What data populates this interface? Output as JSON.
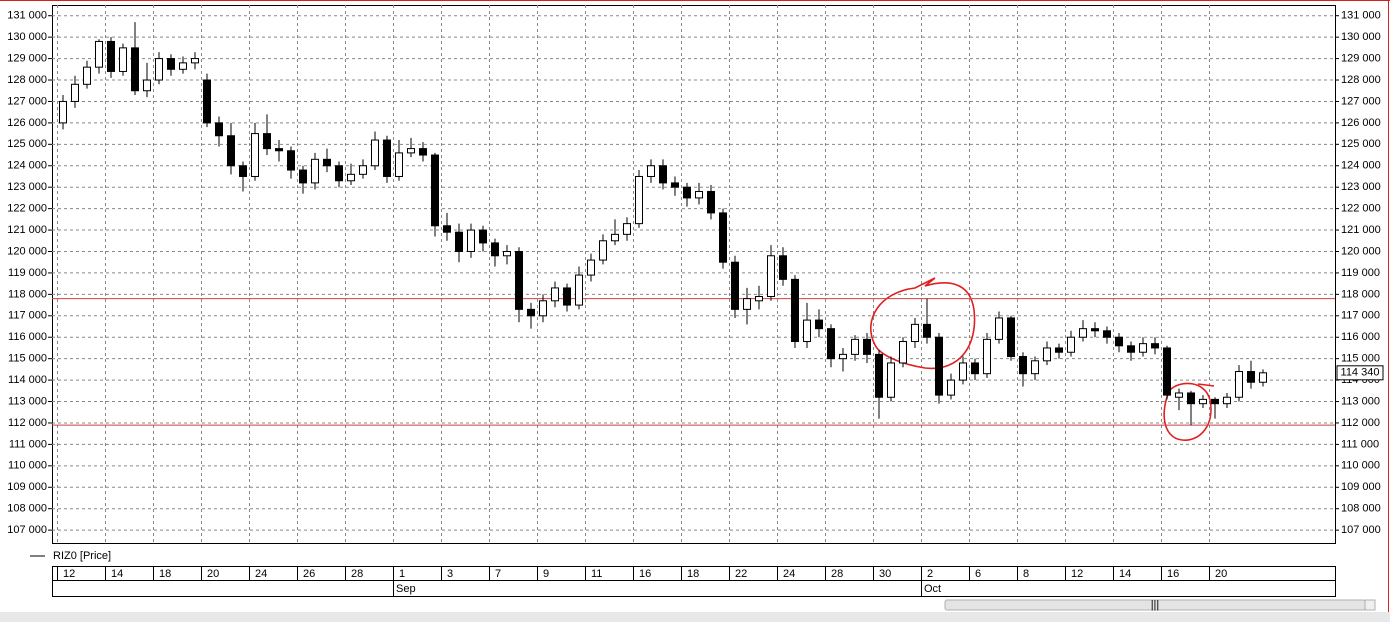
{
  "chart_data": {
    "type": "candlestick",
    "ylim": [
      106400,
      131500
    ],
    "yticks": [
      {
        "value": 107000,
        "label": "107 000"
      },
      {
        "value": 108000,
        "label": "108 000"
      },
      {
        "value": 109000,
        "label": "109 000"
      },
      {
        "value": 110000,
        "label": "110 000"
      },
      {
        "value": 111000,
        "label": "111 000"
      },
      {
        "value": 112000,
        "label": "112 000"
      },
      {
        "value": 113000,
        "label": "113 000"
      },
      {
        "value": 114000,
        "label": "114 000"
      },
      {
        "value": 115000,
        "label": "115 000"
      },
      {
        "value": 116000,
        "label": "116 000"
      },
      {
        "value": 117000,
        "label": "117 000"
      },
      {
        "value": 118000,
        "label": "118 000"
      },
      {
        "value": 119000,
        "label": "119 000"
      },
      {
        "value": 120000,
        "label": "120 000"
      },
      {
        "value": 121000,
        "label": "121 000"
      },
      {
        "value": 122000,
        "label": "122 000"
      },
      {
        "value": 123000,
        "label": "123 000"
      },
      {
        "value": 124000,
        "label": "124 000"
      },
      {
        "value": 125000,
        "label": "125 000"
      },
      {
        "value": 126000,
        "label": "126 000"
      },
      {
        "value": 127000,
        "label": "127 000"
      },
      {
        "value": 128000,
        "label": "128 000"
      },
      {
        "value": 129000,
        "label": "129 000"
      },
      {
        "value": 130000,
        "label": "130 000"
      },
      {
        "value": 131000,
        "label": "131 000"
      }
    ],
    "grid": true,
    "categories": [
      "12",
      null,
      null,
      null,
      "14",
      null,
      null,
      null,
      "18",
      null,
      null,
      null,
      "20",
      null,
      null,
      null,
      "24",
      null,
      null,
      null,
      "26",
      null,
      null,
      null,
      "28",
      null,
      null,
      null,
      "1",
      null,
      null,
      null,
      "3",
      null,
      null,
      null,
      "7",
      null,
      null,
      null,
      "9",
      null,
      null,
      null,
      "11",
      null,
      null,
      null,
      "16",
      null,
      null,
      null,
      "18",
      null,
      null,
      null,
      "22",
      null,
      null,
      null,
      "24",
      null,
      null,
      null,
      "28",
      null,
      null,
      null,
      "30",
      null,
      null,
      null,
      "2",
      null,
      null,
      null,
      "6",
      null,
      null,
      null,
      "8",
      null,
      null,
      null,
      "12",
      null,
      null,
      null,
      "14",
      null,
      null,
      null,
      "16",
      null,
      null,
      null,
      "20",
      null,
      null,
      null,
      null
    ],
    "months": [
      null,
      null,
      null,
      null,
      null,
      null,
      null,
      null,
      null,
      null,
      null,
      null,
      null,
      null,
      null,
      null,
      null,
      null,
      null,
      null,
      null,
      null,
      null,
      null,
      null,
      null,
      null,
      null,
      "Sep",
      null,
      null,
      null,
      null,
      null,
      null,
      null,
      null,
      null,
      null,
      null,
      null,
      null,
      null,
      null,
      null,
      null,
      null,
      null,
      null,
      null,
      null,
      null,
      null,
      null,
      null,
      null,
      null,
      null,
      null,
      null,
      null,
      null,
      null,
      null,
      null,
      null,
      null,
      null,
      null,
      null,
      null,
      null,
      "Oct",
      null,
      null,
      null,
      null,
      null,
      null,
      null,
      null,
      null,
      null,
      null,
      null,
      null,
      null,
      null,
      null,
      null,
      null,
      null,
      null,
      null,
      null,
      null,
      null,
      null,
      null,
      null,
      null
    ],
    "series": [
      {
        "name": "RIZ0 [Price]",
        "up_color": "#ffffff",
        "down_color": "#000000",
        "open": [
          126000,
          127000,
          127800,
          128600,
          129800,
          128400,
          129500,
          127500,
          128000,
          129000,
          128500,
          128800,
          128000,
          126000,
          125400,
          124000,
          123500,
          125500,
          124800,
          124700,
          123800,
          123200,
          124300,
          124000,
          123300,
          123600,
          124000,
          125200,
          123500,
          124600,
          124800,
          124500,
          121200,
          120900,
          120000,
          121000,
          120400,
          119800,
          120000,
          117300,
          117000,
          117700,
          118300,
          117500,
          118900,
          119600,
          120500,
          120800,
          121300,
          123500,
          124000,
          123200,
          123000,
          122500,
          122800,
          121800,
          119500,
          117300,
          117700,
          117900,
          119800,
          118700,
          115800,
          116800,
          116400,
          115000,
          115200,
          115900,
          115200,
          113200,
          114800,
          115800,
          116600,
          116000,
          113300,
          114000,
          114800,
          114300,
          115900,
          116900,
          115100,
          114300,
          114900,
          115500,
          115300,
          116000,
          116400,
          116300,
          116000,
          115600,
          115300,
          115700,
          115500,
          113200,
          113400,
          112900,
          113100,
          112900,
          113200,
          114400,
          113900
        ],
        "high": [
          127300,
          128200,
          128900,
          129900,
          130000,
          129700,
          130700,
          128800,
          129300,
          129200,
          129100,
          129300,
          128300,
          126300,
          126000,
          124200,
          126000,
          126400,
          125200,
          124900,
          124000,
          124600,
          124800,
          124200,
          124100,
          124300,
          125600,
          125400,
          125200,
          125300,
          125100,
          124600,
          121800,
          121300,
          121300,
          121200,
          120600,
          120300,
          120200,
          117600,
          118000,
          118600,
          118500,
          119300,
          119900,
          120800,
          121500,
          121600,
          123800,
          124300,
          124300,
          123500,
          123200,
          123200,
          123100,
          122000,
          119800,
          118300,
          118400,
          120300,
          120200,
          118900,
          117600,
          117300,
          116600,
          115500,
          116100,
          116200,
          115400,
          115100,
          116000,
          116900,
          117800,
          116200,
          114300,
          115100,
          115000,
          116200,
          117200,
          117000,
          115300,
          115100,
          115800,
          115700,
          116300,
          116800,
          116700,
          116500,
          116200,
          115800,
          116000,
          116000,
          115600,
          113600,
          113500,
          113300,
          113200,
          113400,
          114700,
          114900,
          114500
        ],
        "low": [
          125700,
          126700,
          127600,
          128300,
          128100,
          128200,
          127300,
          127200,
          127800,
          128200,
          128300,
          128500,
          125800,
          124900,
          123600,
          122800,
          123300,
          124500,
          124200,
          123400,
          122700,
          122900,
          123700,
          123000,
          123100,
          123400,
          123800,
          123200,
          123300,
          124400,
          124200,
          120700,
          120500,
          119500,
          119700,
          120000,
          119300,
          119400,
          116700,
          116400,
          116700,
          117400,
          117200,
          117300,
          118600,
          119400,
          120300,
          120500,
          121100,
          123200,
          122900,
          122600,
          122100,
          122200,
          121500,
          119200,
          116900,
          116600,
          117300,
          117700,
          118400,
          115500,
          115500,
          116000,
          114600,
          114400,
          114900,
          114800,
          112200,
          113000,
          114600,
          115500,
          115700,
          112900,
          113100,
          113800,
          114000,
          114100,
          115700,
          114900,
          113700,
          114000,
          114700,
          115000,
          115100,
          115800,
          116000,
          115700,
          115300,
          114900,
          115100,
          115200,
          113100,
          112600,
          111900,
          112700,
          112200,
          112700,
          113000,
          113600,
          113700
        ],
        "close": [
          127000,
          127800,
          128600,
          129800,
          128400,
          129500,
          127500,
          128000,
          129000,
          128500,
          128800,
          129000,
          126000,
          125400,
          124000,
          123500,
          125500,
          124800,
          124700,
          123800,
          123200,
          124300,
          124000,
          123300,
          123600,
          124000,
          125200,
          123500,
          124600,
          124800,
          124500,
          121200,
          120900,
          120000,
          121000,
          120400,
          119800,
          120000,
          117300,
          117000,
          117700,
          118300,
          117500,
          118900,
          119600,
          120500,
          120800,
          121300,
          123500,
          124000,
          123200,
          123000,
          122500,
          122800,
          121800,
          119500,
          117300,
          117800,
          117900,
          119800,
          118700,
          115800,
          116800,
          116400,
          115000,
          115200,
          115900,
          115200,
          113200,
          114800,
          115800,
          116600,
          116000,
          113300,
          114000,
          114800,
          114300,
          115900,
          116900,
          115100,
          114300,
          114900,
          115500,
          115300,
          116000,
          116400,
          116300,
          116000,
          115600,
          115300,
          115700,
          115500,
          113300,
          113400,
          112900,
          113100,
          112900,
          113200,
          114400,
          113900,
          114340
        ]
      }
    ],
    "last_price": {
      "value": 114340,
      "label": "114 340"
    },
    "hlines": [
      {
        "value": 117800,
        "color": "#d04040"
      },
      {
        "value": 111900,
        "color": "#d04040"
      }
    ]
  }
}
